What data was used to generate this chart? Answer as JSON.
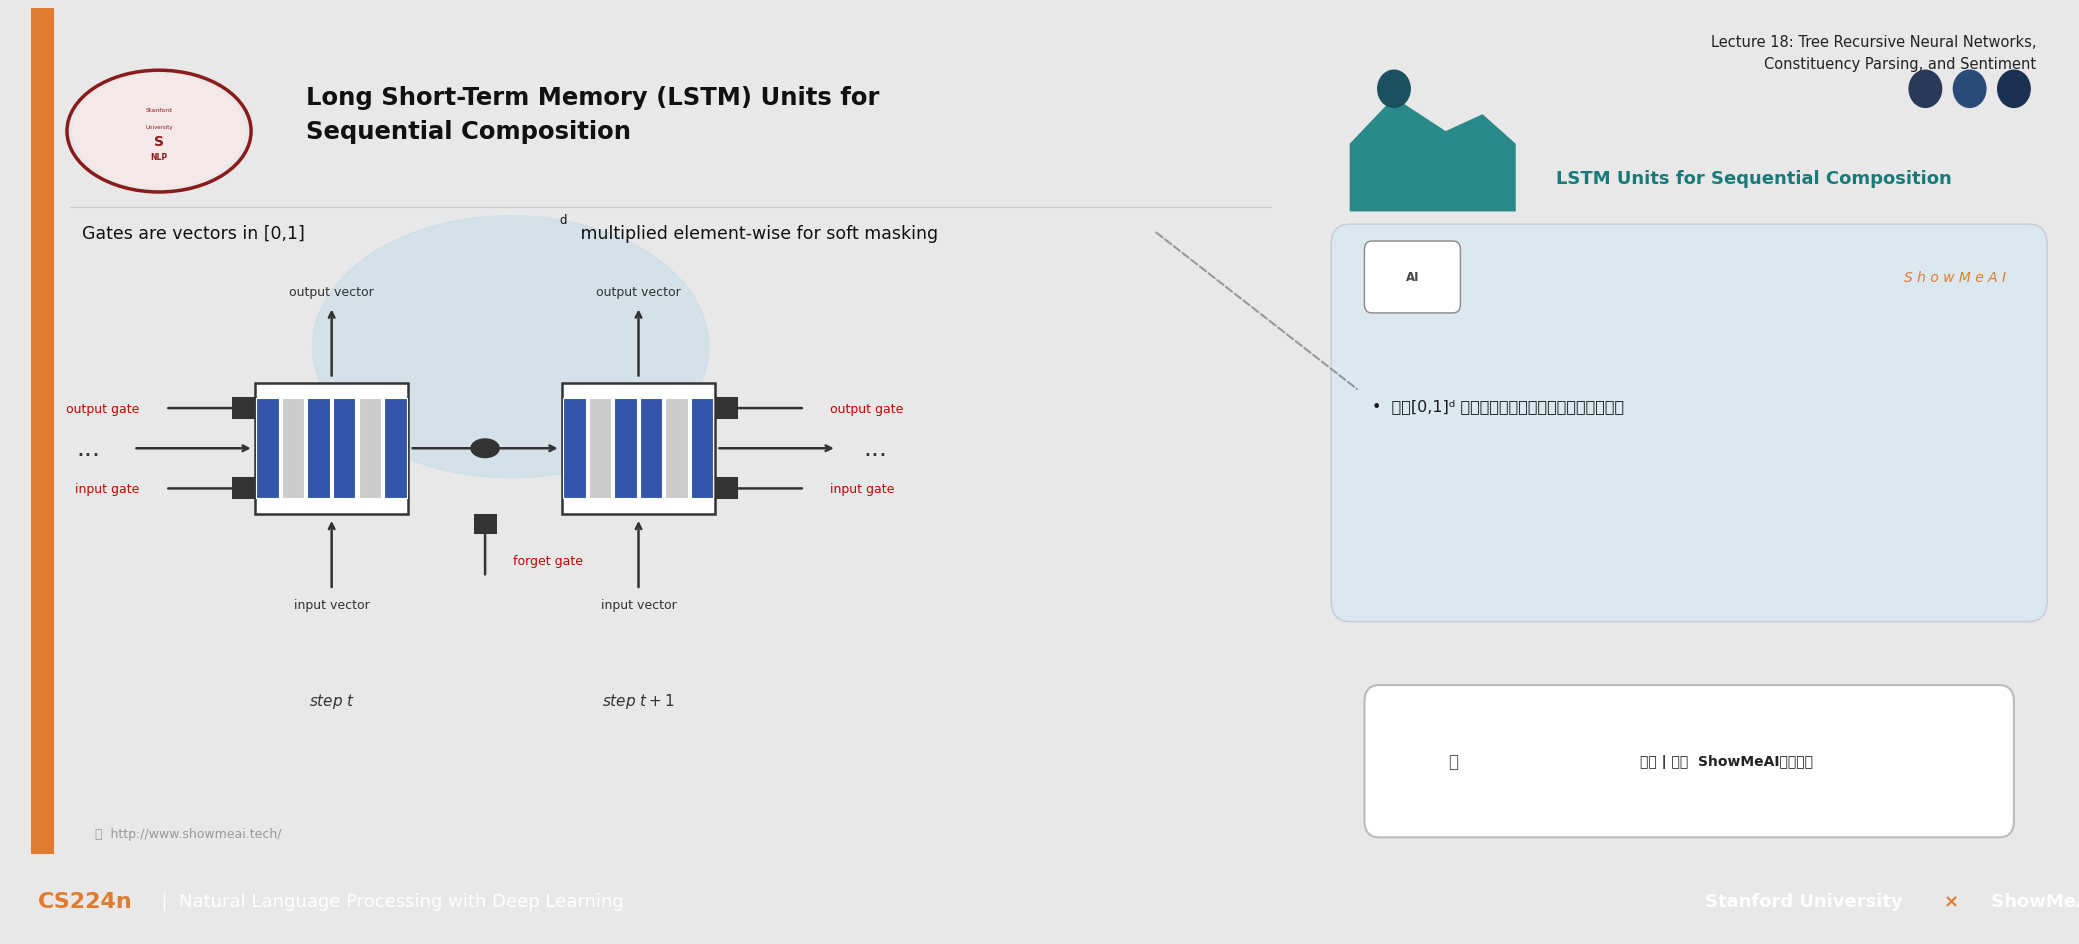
{
  "title_lecture": "Lecture 18: Tree Recursive Neural Networks,\nConstituency Parsing, and Sentiment",
  "title_slide": "LSTM Units for Sequential Composition",
  "slide_title_main": "Long Short-Term Memory (LSTM) Units for\nSequential Composition",
  "gate_text": "Gates are vectors in [0,1]",
  "gate_superscript": "d",
  "gate_text2": " multiplied element-wise for soft masking",
  "showmeai_text": "S h o w M e A I",
  "ai_bullet": "门是[0,1]ᵈ 的向量，用于逐元素乘积的软掩蔽元素",
  "url_text": "http://www.showmeai.tech/",
  "search_text": "搜索 | 微信  ShowMeAI研究中心",
  "footer_left": "CS224n",
  "footer_mid": "  |  Natural Language Processing with Deep Learning",
  "footer_right_a": "Stanford University ",
  "footer_right_x": "×",
  "footer_right_b": " ShowMeAI",
  "bg_color": "#e8e8e8",
  "slide_bg": "#ffffff",
  "right_bg": "#eaf0f5",
  "footer_bg": "#2b2d3a",
  "teal_color": "#1a7a7a",
  "orange_color": "#e07b30",
  "red_color": "#cc0000",
  "blue_cell_color": "#3355aa",
  "gray_cell_color": "#cccccc",
  "dashed_line_color": "#999999"
}
